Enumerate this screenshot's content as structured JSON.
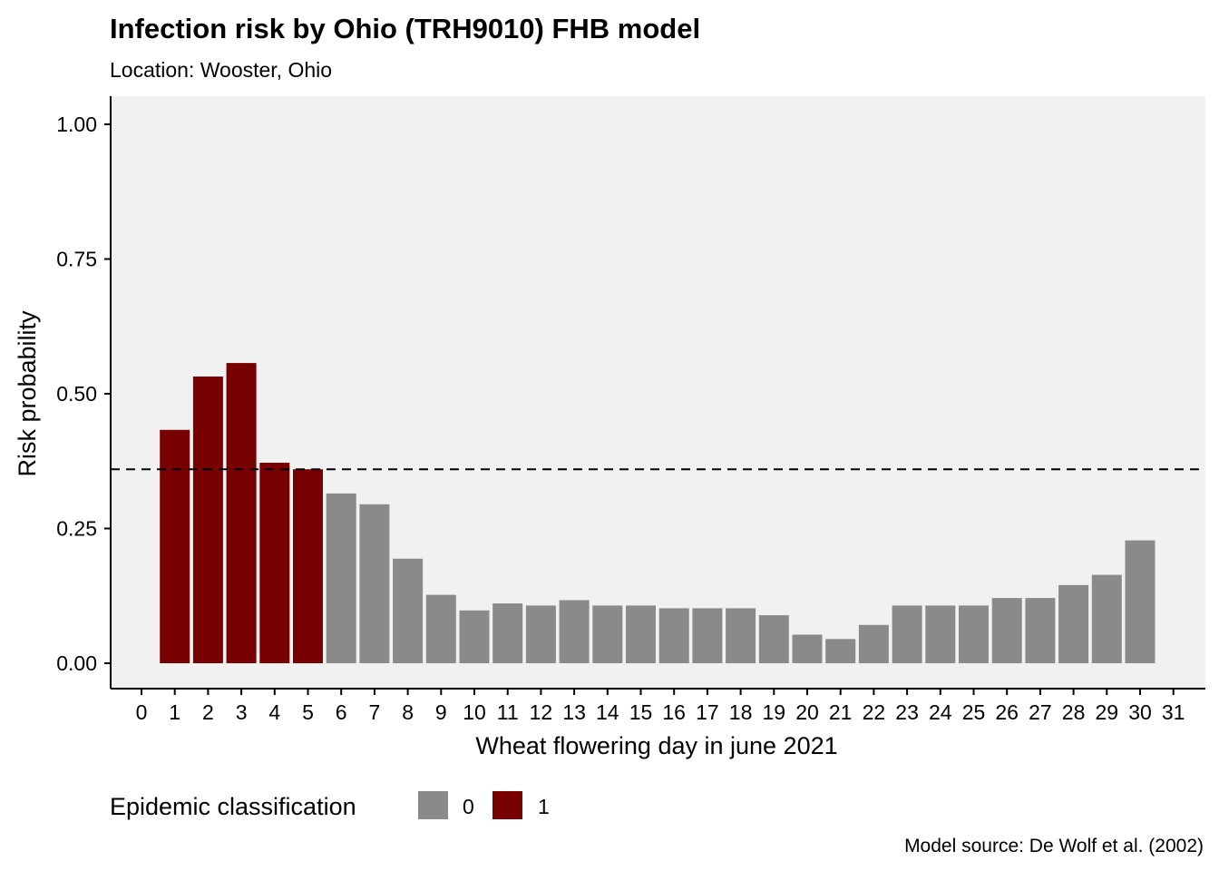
{
  "chart_data": {
    "type": "bar",
    "title": "Infection risk by Ohio (TRH9010) FHB model",
    "subtitle": "Location: Wooster, Ohio",
    "xlabel": "Wheat flowering day in june 2021",
    "ylabel": "Risk probability",
    "caption": "Model source: De Wolf et al. (2002)",
    "xlim": [
      0,
      31
    ],
    "x_ticks": [
      "0",
      "1",
      "2",
      "3",
      "4",
      "5",
      "6",
      "7",
      "8",
      "9",
      "10",
      "11",
      "12",
      "13",
      "14",
      "15",
      "16",
      "17",
      "18",
      "19",
      "20",
      "21",
      "22",
      "23",
      "24",
      "25",
      "26",
      "27",
      "28",
      "29",
      "30",
      "31"
    ],
    "ylim": [
      0,
      1.0
    ],
    "y_ticks": [
      0.0,
      0.25,
      0.5,
      0.75,
      1.0
    ],
    "y_tick_labels": [
      "0.00",
      "0.25",
      "0.50",
      "0.75",
      "1.00"
    ],
    "threshold": 0.36,
    "threshold_style": "dashed",
    "days": [
      1,
      2,
      3,
      4,
      5,
      6,
      7,
      8,
      9,
      10,
      11,
      12,
      13,
      14,
      15,
      16,
      17,
      18,
      19,
      20,
      21,
      22,
      23,
      24,
      25,
      26,
      27,
      28,
      29,
      30
    ],
    "values": [
      0.433,
      0.532,
      0.557,
      0.372,
      0.36,
      0.315,
      0.295,
      0.194,
      0.127,
      0.098,
      0.111,
      0.107,
      0.117,
      0.107,
      0.107,
      0.102,
      0.102,
      0.102,
      0.089,
      0.053,
      0.045,
      0.071,
      0.107,
      0.107,
      0.107,
      0.121,
      0.121,
      0.145,
      0.164,
      0.228
    ],
    "classification": [
      1,
      1,
      1,
      1,
      1,
      0,
      0,
      0,
      0,
      0,
      0,
      0,
      0,
      0,
      0,
      0,
      0,
      0,
      0,
      0,
      0,
      0,
      0,
      0,
      0,
      0,
      0,
      0,
      0,
      0
    ],
    "legend": {
      "title": "Epidemic classification",
      "position": "bottom-left",
      "items": [
        {
          "label": "0",
          "color": "#8a8a8a"
        },
        {
          "label": "1",
          "color": "#770000"
        }
      ]
    },
    "colors": {
      "0": "#8a8a8a",
      "1": "#770000"
    },
    "panel_background": "#f1f1f1",
    "grid": false
  }
}
